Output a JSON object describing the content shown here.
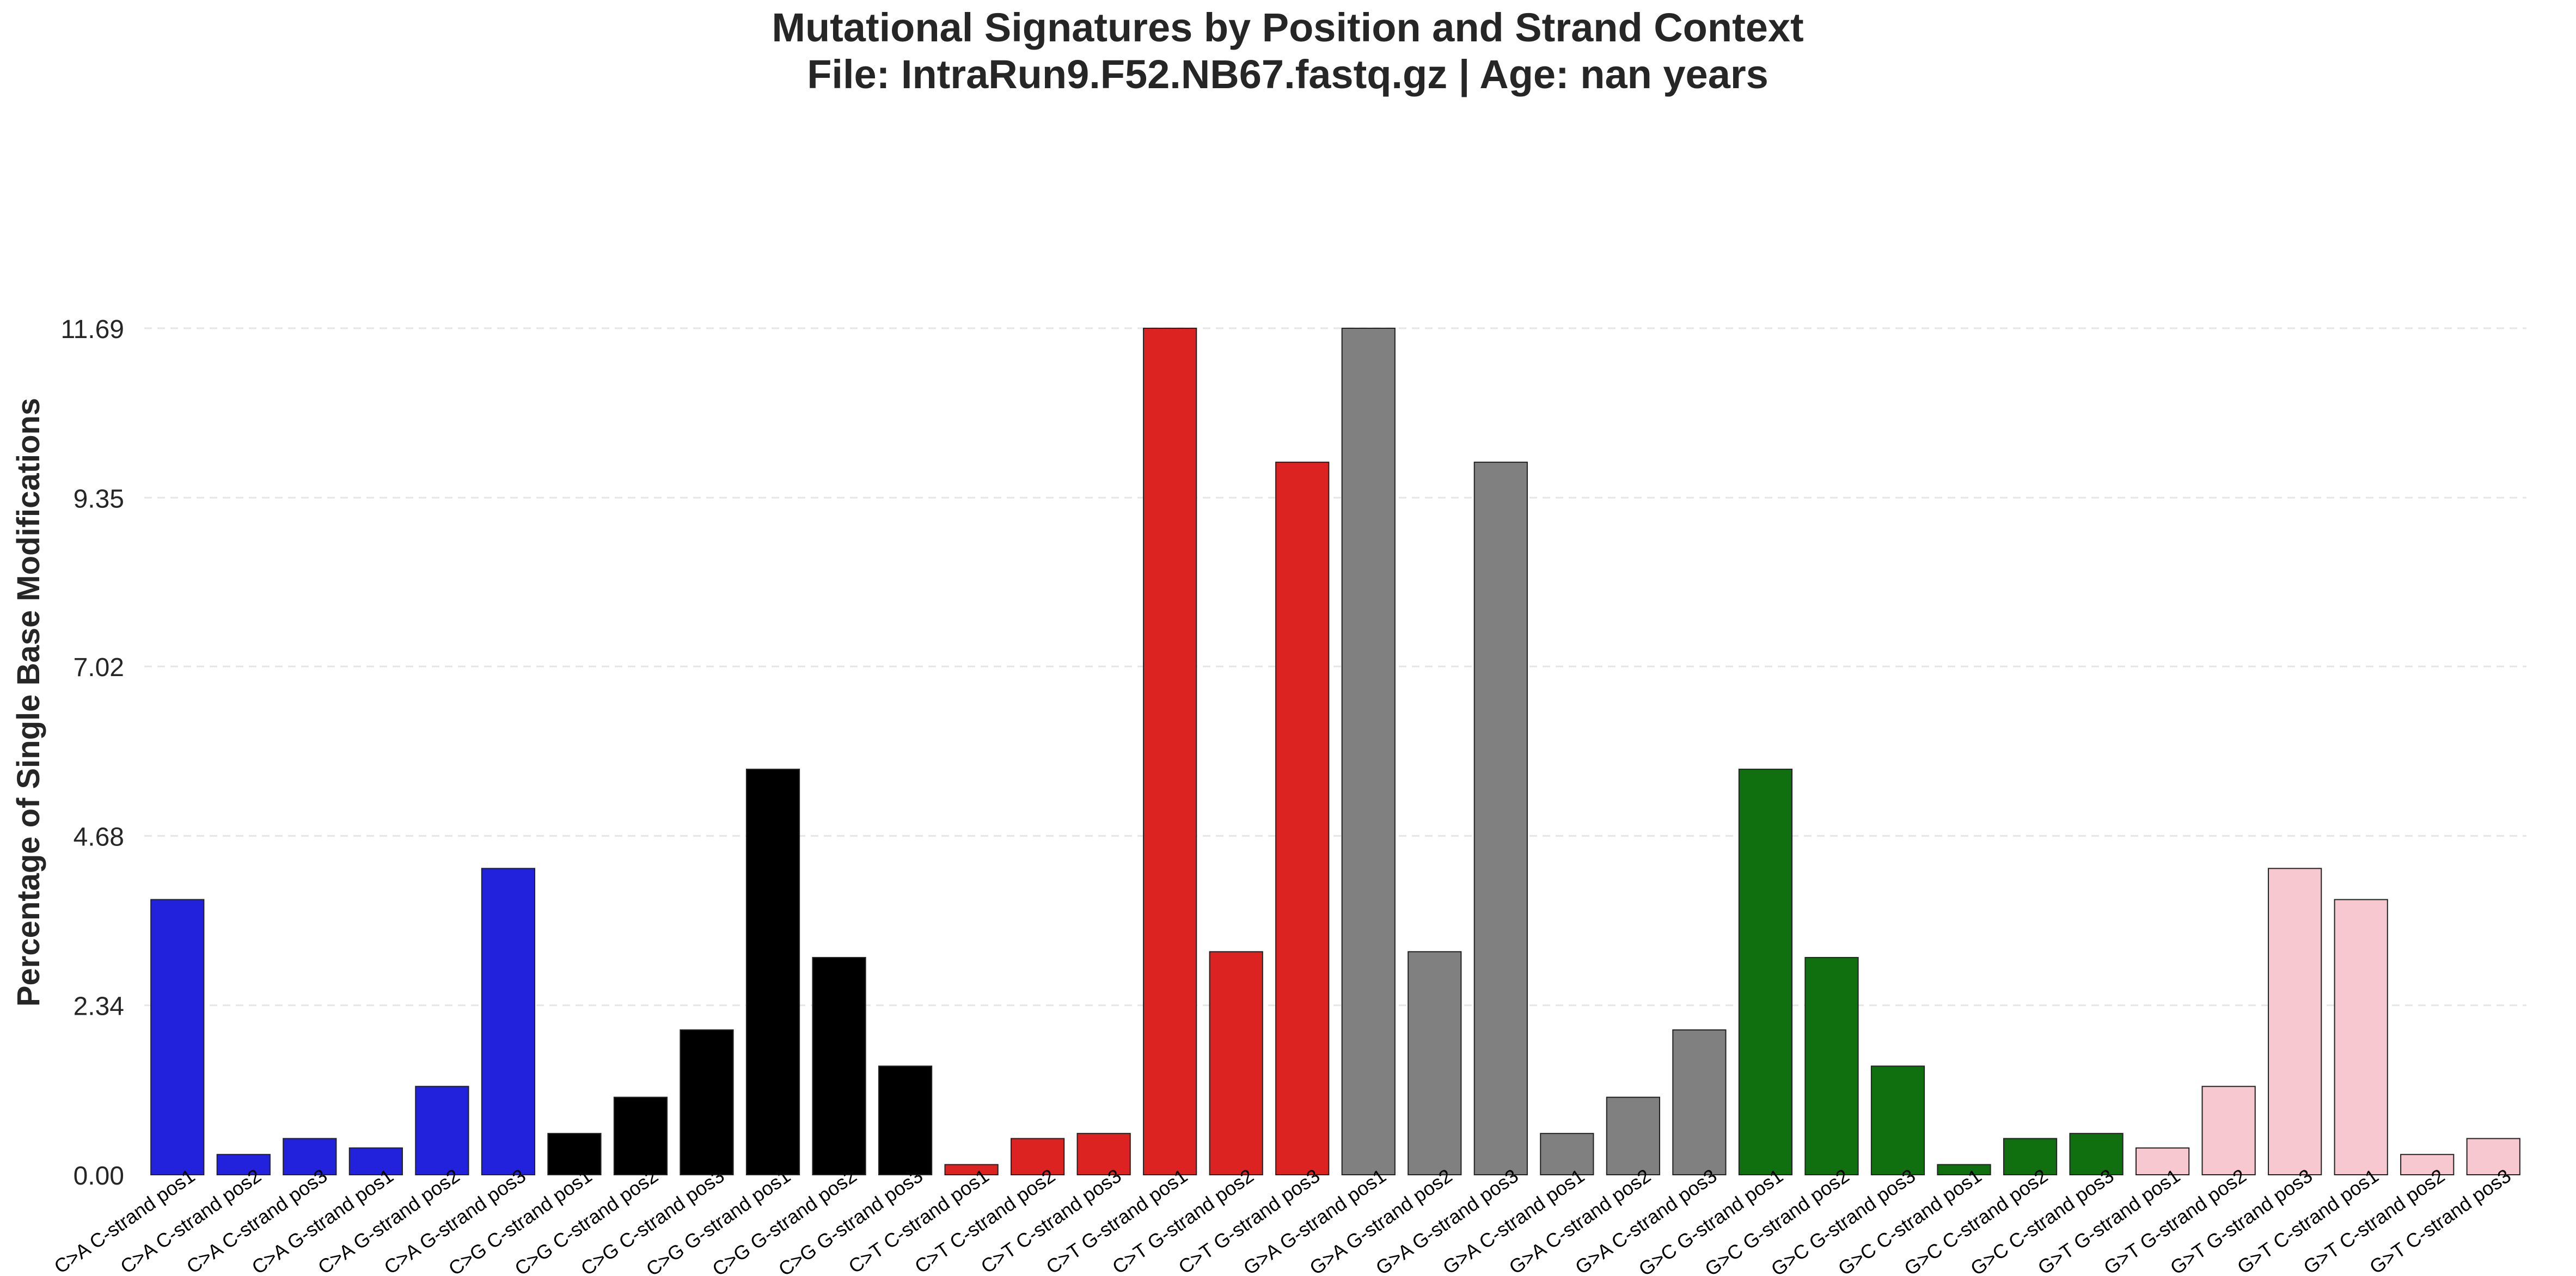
{
  "chart_data": {
    "type": "bar",
    "title": "Mutational Signatures by Position and Strand Context",
    "subtitle": "File: IntraRun9.F52.NB67.fastq.gz | Age: nan years",
    "ylabel": "Percentage of Single Base Modifications",
    "xlabel": "",
    "ylim": [
      0,
      11.69
    ],
    "yticks": [
      "0.00",
      "2.34",
      "4.68",
      "7.02",
      "9.35",
      "11.69"
    ],
    "grid": "y-dashed",
    "categories": [
      "C>A C-strand pos1",
      "C>A C-strand pos2",
      "C>A C-strand pos3",
      "C>A G-strand pos1",
      "C>A G-strand pos2",
      "C>A G-strand pos3",
      "C>G C-strand pos1",
      "C>G C-strand pos2",
      "C>G C-strand pos3",
      "C>G G-strand pos1",
      "C>G G-strand pos2",
      "C>G G-strand pos3",
      "C>T C-strand pos1",
      "C>T C-strand pos2",
      "C>T C-strand pos3",
      "C>T G-strand pos1",
      "C>T G-strand pos2",
      "C>T G-strand pos3",
      "G>A G-strand pos1",
      "G>A G-strand pos2",
      "G>A G-strand pos3",
      "G>A C-strand pos1",
      "G>A C-strand pos2",
      "G>A C-strand pos3",
      "G>C G-strand pos1",
      "G>C G-strand pos2",
      "G>C G-strand pos3",
      "G>C C-strand pos1",
      "G>C C-strand pos2",
      "G>C C-strand pos3",
      "G>T G-strand pos1",
      "G>T G-strand pos2",
      "G>T G-strand pos3",
      "G>T C-strand pos1",
      "G>T C-strand pos2",
      "G>T C-strand pos3"
    ],
    "values": [
      3.8,
      0.28,
      0.5,
      0.37,
      1.22,
      4.23,
      0.57,
      1.07,
      2.0,
      5.6,
      3.0,
      1.5,
      0.14,
      0.5,
      0.57,
      11.69,
      3.08,
      9.84,
      11.69,
      3.08,
      9.84,
      0.57,
      1.07,
      2.0,
      5.6,
      3.0,
      1.5,
      0.14,
      0.5,
      0.57,
      0.37,
      1.22,
      4.23,
      3.8,
      0.28,
      0.5
    ],
    "colors": [
      "#2222dd",
      "#2222dd",
      "#2222dd",
      "#2222dd",
      "#2222dd",
      "#2222dd",
      "#000000",
      "#000000",
      "#000000",
      "#000000",
      "#000000",
      "#000000",
      "#dd2222",
      "#dd2222",
      "#dd2222",
      "#dd2222",
      "#dd2222",
      "#dd2222",
      "#808080",
      "#808080",
      "#808080",
      "#808080",
      "#808080",
      "#808080",
      "#107010",
      "#107010",
      "#107010",
      "#107010",
      "#107010",
      "#107010",
      "#f8c8d0",
      "#f8c8d0",
      "#f8c8d0",
      "#f8c8d0",
      "#f8c8d0",
      "#f8c8d0"
    ]
  }
}
